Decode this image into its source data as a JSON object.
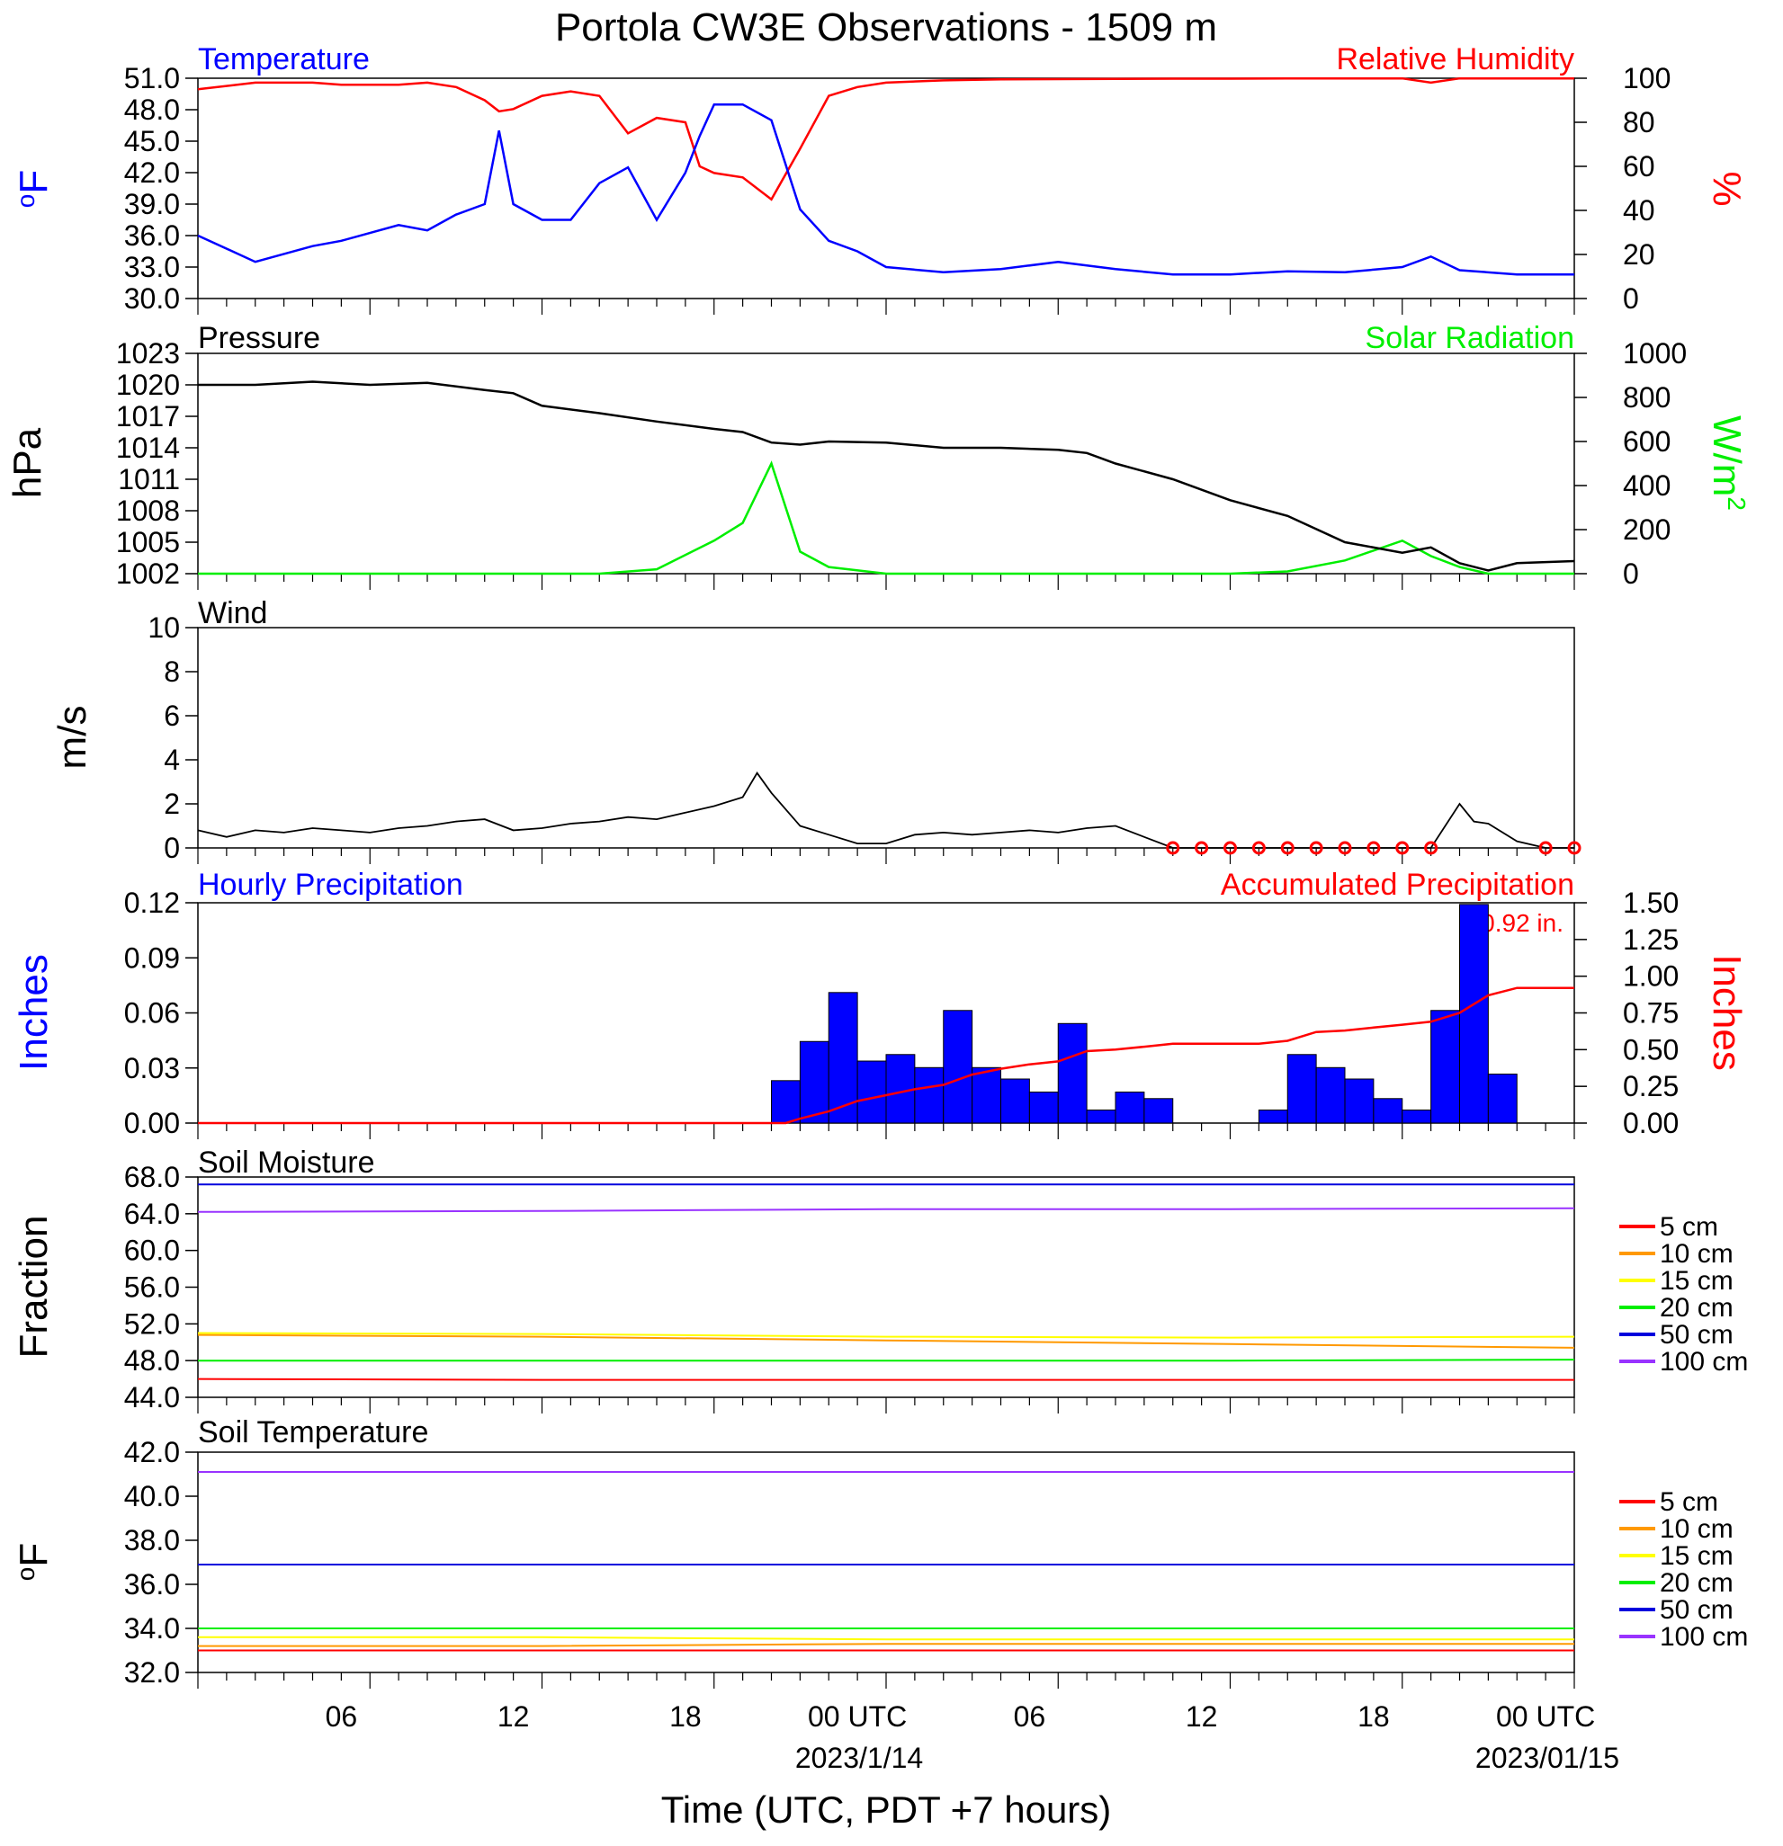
{
  "title": "Portola CW3E Observations - 1509 m",
  "x_axis": {
    "ticks": [
      "06",
      "12",
      "18",
      "00 UTC",
      "06",
      "12",
      "18",
      "00 UTC"
    ],
    "dates": [
      "2023/1/14",
      "2023/01/15"
    ],
    "label": "Time (UTC, PDT +7 hours)"
  },
  "colors": {
    "temperature": "#0000ff",
    "humidity": "#ff0000",
    "pressure": "#000000",
    "solar": "#00ee00",
    "wind": "#000000",
    "wind_barb": "#ff0000",
    "hourly_precip": "#0000ff",
    "accum_precip": "#ff0000",
    "soil_5cm": "#ff0000",
    "soil_10cm": "#ff9900",
    "soil_15cm": "#ffff00",
    "soil_20cm": "#00ee00",
    "soil_50cm": "#0000dd",
    "soil_100cm": "#9933ff"
  },
  "chart_data": [
    {
      "type": "line",
      "panel": "temperature_humidity",
      "left_title": "Temperature",
      "right_title": "Relative Humidity",
      "ylabel": "oF",
      "ylabel_right": "%",
      "ylim": [
        30.0,
        51.0
      ],
      "ylim_right": [
        0,
        100
      ],
      "yticks": [
        "51.0",
        "48.0",
        "45.0",
        "42.0",
        "39.0",
        "36.0",
        "33.0",
        "30.0"
      ],
      "yticks_right": [
        "100",
        "80",
        "60",
        "40",
        "20",
        "0"
      ],
      "x_hours": [
        0,
        2,
        4,
        5,
        7,
        8,
        9,
        10,
        10.5,
        11,
        12,
        13,
        14,
        15,
        16,
        17,
        17.5,
        18,
        19,
        20,
        21,
        22,
        23,
        24,
        26,
        28,
        30,
        32,
        34,
        36,
        38,
        40,
        42,
        43,
        44,
        46,
        48
      ],
      "series": [
        {
          "name": "Temperature",
          "values": [
            36.0,
            33.5,
            35.0,
            35.5,
            37.0,
            36.5,
            38.0,
            39.0,
            46.0,
            39.0,
            37.5,
            37.5,
            41.0,
            42.5,
            37.5,
            42.0,
            45.5,
            48.5,
            48.5,
            47.0,
            38.5,
            35.5,
            34.5,
            33.0,
            32.5,
            32.8,
            33.5,
            32.8,
            32.3,
            32.3,
            32.6,
            32.5,
            33.0,
            34.0,
            32.7,
            32.3,
            32.3
          ]
        },
        {
          "name": "Relative Humidity",
          "values": [
            95,
            98,
            98,
            97,
            97,
            98,
            96,
            90,
            85,
            86,
            92,
            94,
            92,
            75,
            82,
            80,
            60,
            57,
            55,
            45,
            68,
            92,
            96,
            98,
            99,
            99.5,
            99.6,
            99.7,
            99.8,
            99.8,
            99.9,
            99.9,
            99.9,
            98,
            99.9,
            99.9,
            99.9
          ]
        }
      ]
    },
    {
      "type": "line",
      "panel": "pressure_solar",
      "left_title": "Pressure",
      "right_title": "Solar Radiation",
      "ylabel": "hPa",
      "ylabel_right": "W/m2",
      "ylim": [
        1002,
        1023
      ],
      "ylim_right": [
        0,
        1000
      ],
      "yticks": [
        "1023",
        "1020",
        "1017",
        "1014",
        "1011",
        "1008",
        "1005",
        "1002"
      ],
      "yticks_right": [
        "1000",
        "800",
        "600",
        "400",
        "200",
        "0"
      ],
      "x_hours": [
        0,
        2,
        4,
        6,
        8,
        10,
        11,
        12,
        14,
        16,
        18,
        19,
        20,
        21,
        22,
        24,
        26,
        28,
        30,
        31,
        32,
        34,
        36,
        38,
        40,
        42,
        43,
        44,
        45,
        46,
        48
      ],
      "series": [
        {
          "name": "Pressure",
          "values": [
            1020.0,
            1020.0,
            1020.3,
            1020.0,
            1020.2,
            1019.5,
            1019.2,
            1018.0,
            1017.3,
            1016.5,
            1015.8,
            1015.5,
            1014.5,
            1014.3,
            1014.6,
            1014.5,
            1014.0,
            1014.0,
            1013.8,
            1013.5,
            1012.5,
            1011.0,
            1009.0,
            1007.5,
            1005.0,
            1004.0,
            1004.5,
            1003.0,
            1002.3,
            1003.0,
            1003.2
          ]
        },
        {
          "name": "Solar Radiation",
          "values": [
            0,
            0,
            0,
            0,
            0,
            0,
            0,
            0,
            0,
            20,
            150,
            230,
            500,
            100,
            30,
            0,
            0,
            0,
            0,
            0,
            0,
            0,
            0,
            10,
            60,
            150,
            80,
            30,
            0,
            0,
            0
          ]
        }
      ]
    },
    {
      "type": "line",
      "panel": "wind",
      "left_title": "Wind",
      "ylabel": "m/s",
      "ylim": [
        0,
        10
      ],
      "yticks": [
        "10",
        "8",
        "6",
        "4",
        "2",
        "0"
      ],
      "x_hours": [
        0,
        1,
        2,
        3,
        4,
        5,
        6,
        7,
        8,
        9,
        10,
        11,
        12,
        13,
        14,
        15,
        16,
        17,
        18,
        19,
        19.5,
        20,
        21,
        22,
        23,
        24,
        25,
        26,
        27,
        28,
        29,
        30,
        31,
        32,
        33,
        34,
        35,
        36,
        37,
        38,
        39,
        40,
        41,
        42,
        43,
        44,
        44.5,
        45,
        46,
        47,
        48
      ],
      "series": [
        {
          "name": "Wind speed",
          "values": [
            0.8,
            0.5,
            0.8,
            0.7,
            0.9,
            0.8,
            0.7,
            0.9,
            1.0,
            1.2,
            1.3,
            0.8,
            0.9,
            1.1,
            1.2,
            1.4,
            1.3,
            1.6,
            1.9,
            2.3,
            3.4,
            2.5,
            1.0,
            0.6,
            0.2,
            0.2,
            0.6,
            0.7,
            0.6,
            0.7,
            0.8,
            0.7,
            0.9,
            1.0,
            0.5,
            0,
            0,
            0,
            0,
            0,
            0,
            0,
            0,
            0,
            0,
            2.0,
            1.2,
            1.1,
            0.3,
            0,
            0
          ]
        }
      ]
    },
    {
      "type": "bar",
      "panel": "precipitation",
      "left_title": "Hourly Precipitation",
      "right_title": "Accumulated Precipitation",
      "annotation": "0.92 in.",
      "ylabel": "Inches",
      "ylabel_right": "Inches",
      "ylim": [
        0,
        0.135
      ],
      "ylim_right": [
        0,
        1.5
      ],
      "yticks": [
        "0.12",
        "0.09",
        "0.06",
        "0.03",
        "0.00"
      ],
      "yticks_right": [
        "1.50",
        "1.25",
        "1.00",
        "0.75",
        "0.50",
        "0.25",
        "0.00"
      ],
      "x_hours": [
        20,
        21,
        22,
        23,
        24,
        25,
        26,
        27,
        28,
        29,
        30,
        31,
        32,
        33,
        34,
        35,
        36,
        37,
        38,
        39,
        40,
        41,
        42,
        43,
        44,
        45,
        46
      ],
      "series": [
        {
          "name": "Hourly Precipitation",
          "values": [
            0.026,
            0.05,
            0.08,
            0.038,
            0.042,
            0.034,
            0.069,
            0.034,
            0.027,
            0.019,
            0.061,
            0.008,
            0.019,
            0.015,
            0,
            0,
            0,
            0.008,
            0.042,
            0.034,
            0.027,
            0.015,
            0.008,
            0.069,
            0.134,
            0.03,
            0
          ]
        }
      ],
      "accumulated": {
        "x_hours": [
          0,
          20.5,
          21,
          22,
          23,
          24,
          25,
          26,
          27,
          28,
          29,
          30,
          31,
          32,
          33,
          34,
          35,
          36,
          37,
          38,
          39,
          40,
          41,
          42,
          43,
          44,
          45,
          46,
          48
        ],
        "values": [
          0,
          0,
          0.03,
          0.08,
          0.15,
          0.19,
          0.23,
          0.26,
          0.33,
          0.37,
          0.4,
          0.42,
          0.49,
          0.5,
          0.52,
          0.54,
          0.54,
          0.54,
          0.54,
          0.56,
          0.62,
          0.63,
          0.65,
          0.67,
          0.69,
          0.75,
          0.87,
          0.92,
          0.92
        ]
      }
    },
    {
      "type": "line",
      "panel": "soil_moisture",
      "left_title": "Soil Moisture",
      "ylabel": "Fraction",
      "ylim": [
        44.0,
        68.0
      ],
      "yticks": [
        "68.0",
        "64.0",
        "60.0",
        "56.0",
        "52.0",
        "48.0",
        "44.0"
      ],
      "x_hours": [
        0,
        12,
        24,
        36,
        48
      ],
      "series": [
        {
          "name": "5 cm",
          "values": [
            46.0,
            45.9,
            45.9,
            45.9,
            45.9
          ]
        },
        {
          "name": "10 cm",
          "values": [
            50.8,
            50.6,
            50.2,
            49.8,
            49.4
          ]
        },
        {
          "name": "15 cm",
          "values": [
            51.0,
            50.9,
            50.6,
            50.5,
            50.6
          ]
        },
        {
          "name": "20 cm",
          "values": [
            48.0,
            48.0,
            48.0,
            48.0,
            48.1
          ]
        },
        {
          "name": "50 cm",
          "values": [
            67.2,
            67.2,
            67.2,
            67.2,
            67.2
          ]
        },
        {
          "name": "100 cm",
          "values": [
            64.2,
            64.3,
            64.5,
            64.5,
            64.6
          ]
        }
      ],
      "legend": [
        "5 cm",
        "10 cm",
        "15 cm",
        "20 cm",
        "50 cm",
        "100 cm"
      ]
    },
    {
      "type": "line",
      "panel": "soil_temperature",
      "left_title": "Soil Temperature",
      "ylabel": "oF",
      "ylim": [
        32.0,
        42.0
      ],
      "yticks": [
        "42.0",
        "40.0",
        "38.0",
        "36.0",
        "34.0",
        "32.0"
      ],
      "x_hours": [
        0,
        12,
        24,
        36,
        48
      ],
      "series": [
        {
          "name": "5 cm",
          "values": [
            33.0,
            33.0,
            33.0,
            33.0,
            33.0
          ]
        },
        {
          "name": "10 cm",
          "values": [
            33.2,
            33.2,
            33.3,
            33.3,
            33.3
          ]
        },
        {
          "name": "15 cm",
          "values": [
            33.6,
            33.6,
            33.5,
            33.5,
            33.5
          ]
        },
        {
          "name": "20 cm",
          "values": [
            34.0,
            34.0,
            34.0,
            34.0,
            34.0
          ]
        },
        {
          "name": "50 cm",
          "values": [
            36.9,
            36.9,
            36.9,
            36.9,
            36.9
          ]
        },
        {
          "name": "100 cm",
          "values": [
            41.1,
            41.1,
            41.1,
            41.1,
            41.1
          ]
        }
      ],
      "legend": [
        "5 cm",
        "10 cm",
        "15 cm",
        "20 cm",
        "50 cm",
        "100 cm"
      ]
    }
  ]
}
